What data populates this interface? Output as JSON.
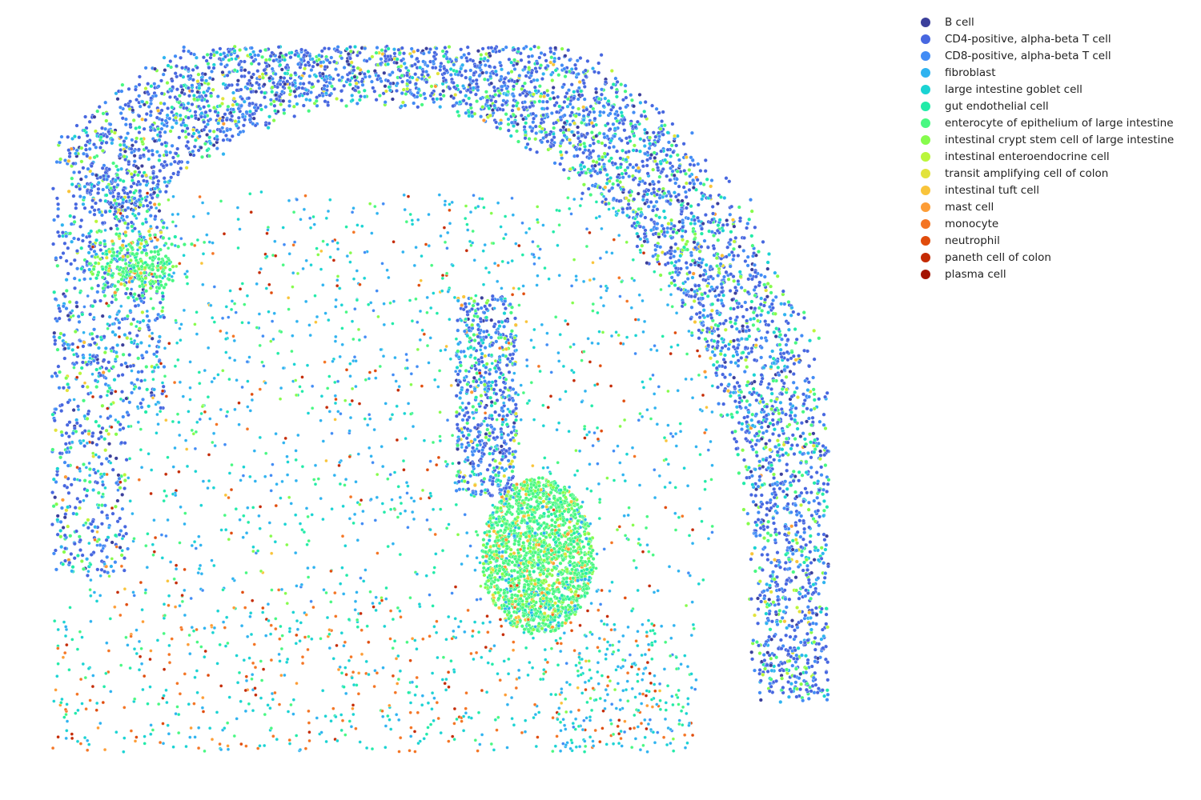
{
  "chart_data": {
    "type": "scatter",
    "title": "",
    "xlabel": "",
    "ylabel": "",
    "grid": false,
    "axes_visible": false,
    "legend_placement": "outside-top-right",
    "series": [
      {
        "name": "B cell",
        "color": "#3b3f9b"
      },
      {
        "name": "CD4-positive, alpha-beta T cell",
        "color": "#4767e0"
      },
      {
        "name": "CD8-positive, alpha-beta T cell",
        "color": "#428cf5"
      },
      {
        "name": "fibroblast",
        "color": "#2fb3f0"
      },
      {
        "name": "large intestine goblet cell",
        "color": "#1ad3d3"
      },
      {
        "name": "gut endothelial cell",
        "color": "#22eba8"
      },
      {
        "name": "enterocyte of epithelium of large intestine",
        "color": "#48f882"
      },
      {
        "name": "intestinal crypt stem cell of large intestine",
        "color": "#86fc4c"
      },
      {
        "name": "intestinal enteroendocrine cell",
        "color": "#baf63a"
      },
      {
        "name": "transit amplifying cell of colon",
        "color": "#e2e33b"
      },
      {
        "name": "intestinal tuft cell",
        "color": "#f9c43a"
      },
      {
        "name": "mast cell",
        "color": "#fd9d36"
      },
      {
        "name": "monocyte",
        "color": "#f47524"
      },
      {
        "name": "neutrophil",
        "color": "#e04c0c"
      },
      {
        "name": "paneth cell of colon",
        "color": "#c42a03"
      },
      {
        "name": "plasma cell",
        "color": "#a31402"
      }
    ]
  }
}
